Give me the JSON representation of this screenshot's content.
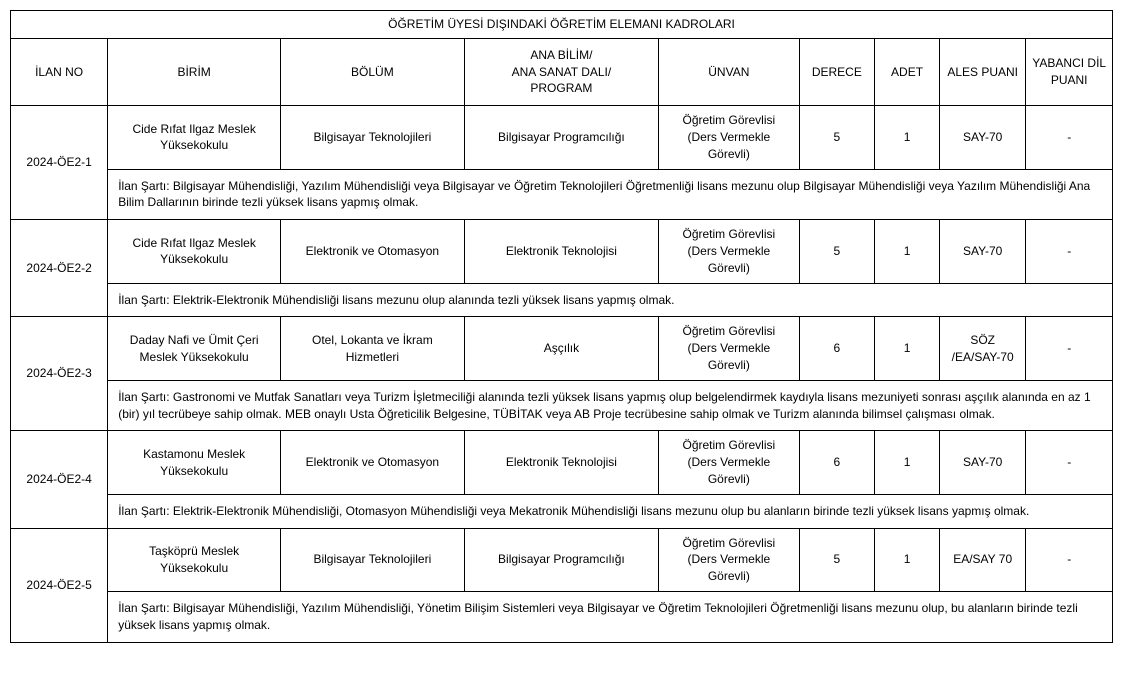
{
  "table": {
    "title": "ÖĞRETİM ÜYESİ DIŞINDAKİ ÖĞRETİM ELEMANI KADROLARI",
    "headers": {
      "ilan_no": "İLAN NO",
      "birim": "BİRİM",
      "bolum": "BÖLÜM",
      "program": "ANA BİLİM/\nANA SANAT DALI/\nPROGRAM",
      "unvan": "ÜNVAN",
      "derece": "DERECE",
      "adet": "ADET",
      "ales": "ALES PUANI",
      "dil": "YABANCI DİL PUANI"
    },
    "rows": [
      {
        "ilan_no": "2024-ÖE2-1",
        "birim": "Cide Rıfat Ilgaz Meslek Yüksekokulu",
        "bolum": "Bilgisayar Teknolojileri",
        "program": "Bilgisayar Programcılığı",
        "unvan": "Öğretim Görevlisi (Ders Vermekle Görevli)",
        "derece": "5",
        "adet": "1",
        "ales": "SAY-70",
        "dil": "-",
        "condition": "İlan Şartı: Bilgisayar Mühendisliği, Yazılım Mühendisliği veya Bilgisayar ve Öğretim Teknolojileri Öğretmenliği lisans mezunu olup Bilgisayar Mühendisliği veya Yazılım Mühendisliği Ana Bilim Dallarının birinde tezli yüksek lisans yapmış olmak."
      },
      {
        "ilan_no": "2024-ÖE2-2",
        "birim": "Cide Rıfat Ilgaz Meslek Yüksekokulu",
        "bolum": "Elektronik ve Otomasyon",
        "program": "Elektronik Teknolojisi",
        "unvan": "Öğretim Görevlisi (Ders Vermekle Görevli)",
        "derece": "5",
        "adet": "1",
        "ales": "SAY-70",
        "dil": "-",
        "condition": "İlan Şartı: Elektrik-Elektronik Mühendisliği lisans mezunu olup alanında tezli yüksek lisans yapmış olmak."
      },
      {
        "ilan_no": "2024-ÖE2-3",
        "birim": "Daday Nafi ve Ümit Çeri Meslek Yüksekokulu",
        "bolum": "Otel, Lokanta ve İkram Hizmetleri",
        "program": "Aşçılık",
        "unvan": "Öğretim Görevlisi (Ders Vermekle Görevli)",
        "derece": "6",
        "adet": "1",
        "ales": "SÖZ /EA/SAY-70",
        "dil": "-",
        "condition": "İlan Şartı: Gastronomi ve Mutfak Sanatları veya Turizm İşletmeciliği alanında tezli yüksek lisans yapmış olup belgelendirmek kaydıyla lisans mezuniyeti sonrası aşçılık alanında en az 1 (bir) yıl tecrübeye sahip olmak. MEB onaylı Usta Öğreticilik Belgesine, TÜBİTAK veya AB Proje tecrübesine sahip olmak ve Turizm alanında bilimsel çalışması olmak."
      },
      {
        "ilan_no": "2024-ÖE2-4",
        "birim": "Kastamonu Meslek Yüksekokulu",
        "bolum": "Elektronik ve Otomasyon",
        "program": "Elektronik Teknolojisi",
        "unvan": "Öğretim Görevlisi (Ders Vermekle Görevli)",
        "derece": "6",
        "adet": "1",
        "ales": "SAY-70",
        "dil": "-",
        "condition": "İlan Şartı: Elektrik-Elektronik Mühendisliği, Otomasyon Mühendisliği veya Mekatronik Mühendisliği lisans mezunu olup bu alanların birinde tezli yüksek lisans yapmış olmak."
      },
      {
        "ilan_no": "2024-ÖE2-5",
        "birim": "Taşköprü Meslek Yüksekokulu",
        "bolum": "Bilgisayar Teknolojileri",
        "program": "Bilgisayar Programcılığı",
        "unvan": "Öğretim Görevlisi (Ders Vermekle Görevli)",
        "derece": "5",
        "adet": "1",
        "ales": "EA/SAY 70",
        "dil": "-",
        "condition": "İlan Şartı: Bilgisayar Mühendisliği, Yazılım Mühendisliği, Yönetim Bilişim Sistemleri veya Bilgisayar ve Öğretim Teknolojileri Öğretmenliği lisans mezunu olup, bu alanların birinde tezli yüksek lisans yapmış olmak."
      }
    ]
  }
}
